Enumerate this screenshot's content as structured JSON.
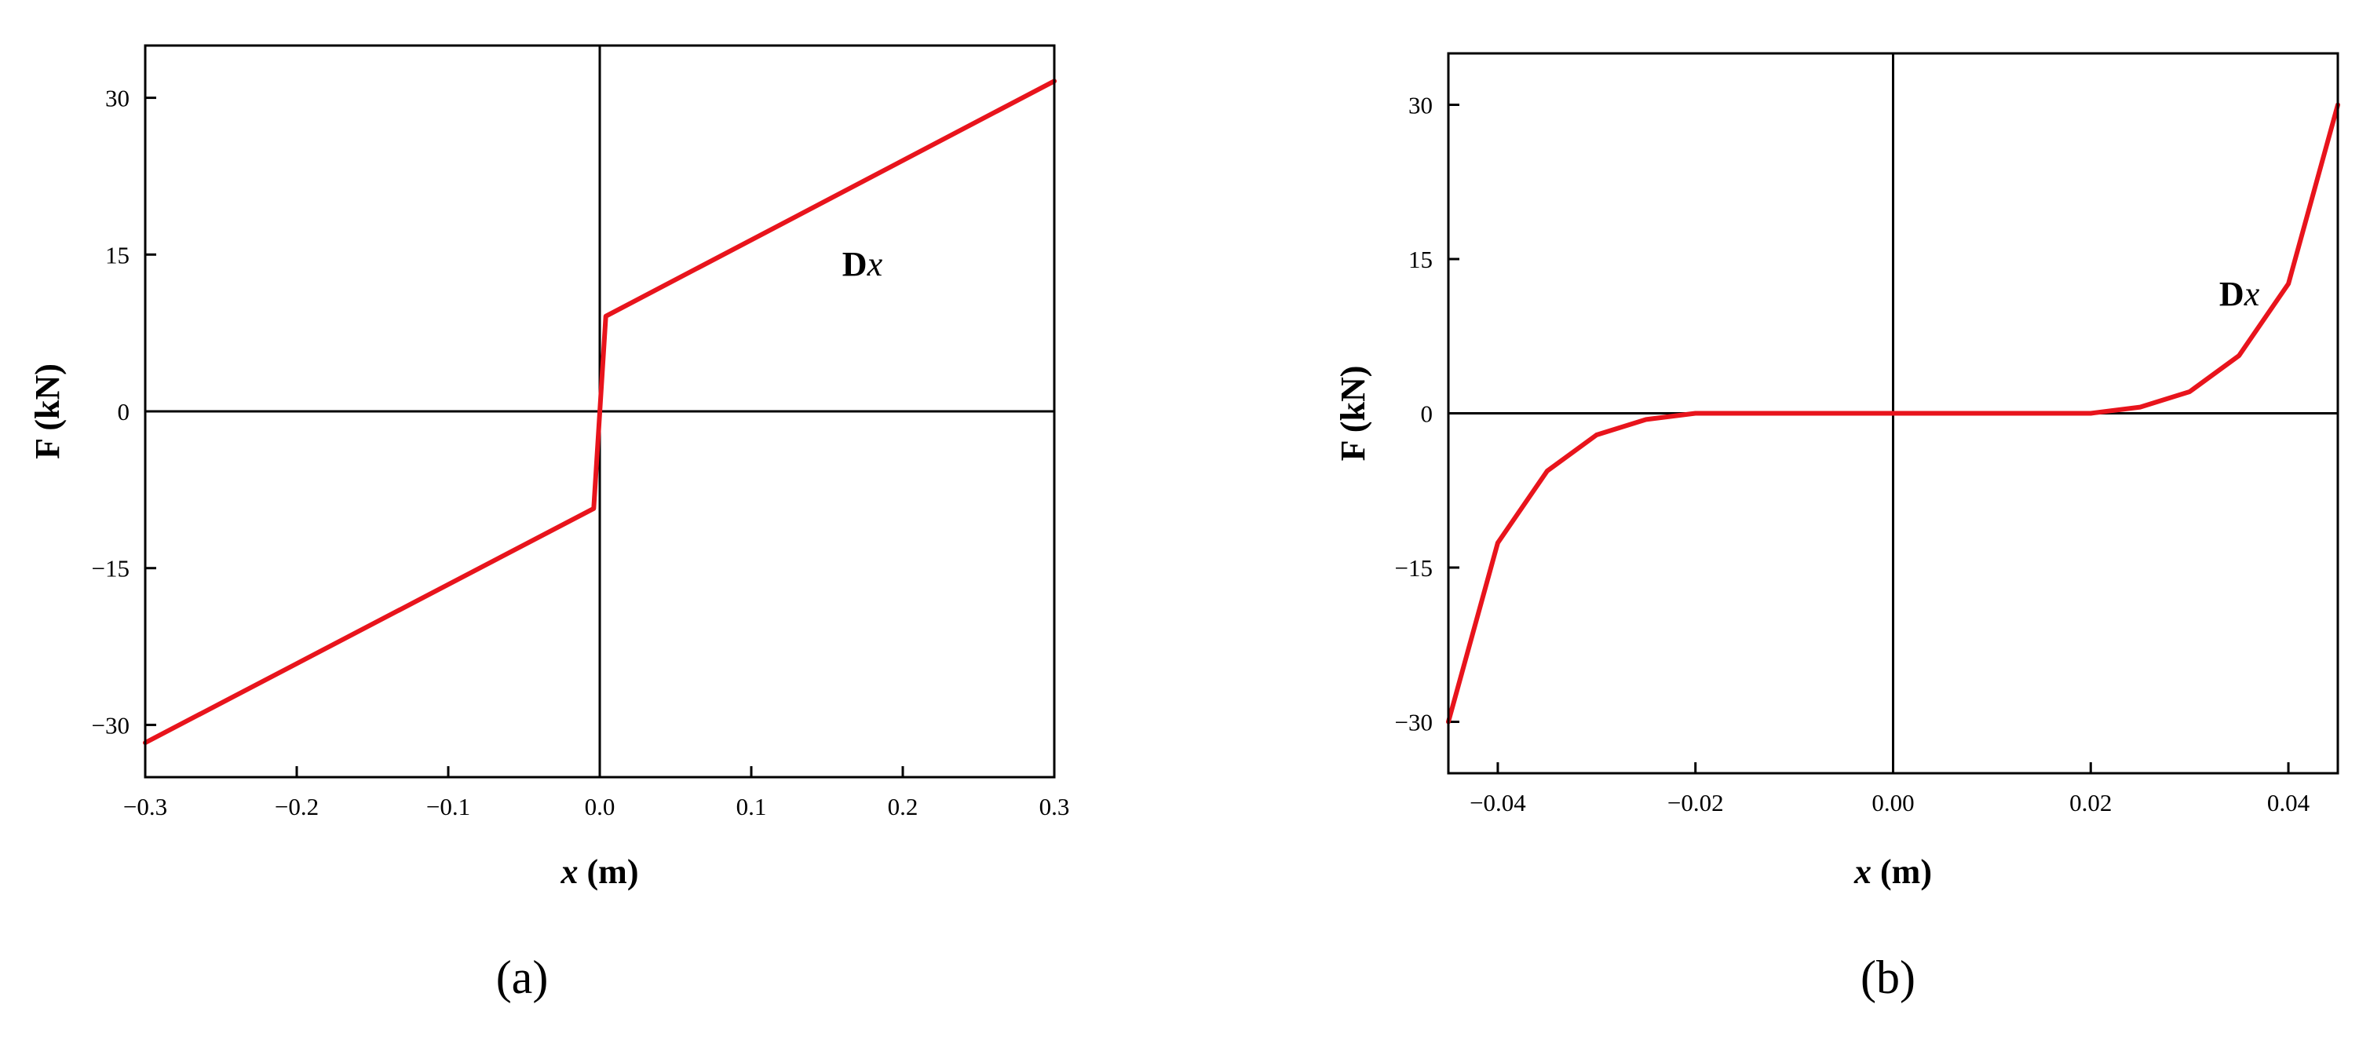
{
  "chart_data": [
    {
      "type": "line",
      "panel_label": "(a)",
      "xlabel_var": "x",
      "xlabel_unit": " (m)",
      "ylabel": "F (kN)",
      "xlim": [
        -0.3,
        0.3
      ],
      "ylim": [
        -35,
        35
      ],
      "xticks": [
        -0.3,
        -0.2,
        -0.1,
        0.0,
        0.1,
        0.2,
        0.3
      ],
      "xtick_labels": [
        "−0.3",
        "−0.2",
        "−0.1",
        "0.0",
        "0.1",
        "0.2",
        "0.3"
      ],
      "yticks": [
        -30,
        -15,
        0,
        15,
        30
      ],
      "ytick_labels": [
        "−30",
        "−15",
        "0",
        "15",
        "30"
      ],
      "grid": false,
      "zero_lines": true,
      "annotation": {
        "bold": "D",
        "italic": "x",
        "at": [
          0.16,
          13
        ]
      },
      "series": [
        {
          "color": "#e8141c",
          "x": [
            -0.3,
            -0.004,
            0.004,
            0.3
          ],
          "y": [
            -31.7,
            -9.3,
            9.1,
            31.6
          ]
        }
      ]
    },
    {
      "type": "line",
      "panel_label": "(b)",
      "xlabel_var": "x",
      "xlabel_unit": " (m)",
      "ylabel": "F (kN)",
      "xlim": [
        -0.045,
        0.045
      ],
      "ylim": [
        -35,
        35
      ],
      "xticks": [
        -0.04,
        -0.02,
        0.0,
        0.02,
        0.04
      ],
      "xtick_labels": [
        "−0.04",
        "−0.02",
        "0.00",
        "0.02",
        "0.04"
      ],
      "yticks": [
        -30,
        -15,
        0,
        15,
        30
      ],
      "ytick_labels": [
        "−30",
        "−15",
        "0",
        "15",
        "30"
      ],
      "grid": false,
      "zero_lines": true,
      "annotation": {
        "bold": "D",
        "italic": "x",
        "at": [
          0.033,
          10.5
        ]
      },
      "series": [
        {
          "color": "#e8141c",
          "x": [
            -0.045,
            -0.04,
            -0.035,
            -0.03,
            -0.025,
            -0.02,
            0.0,
            0.02,
            0.025,
            0.03,
            0.035,
            0.04,
            0.045
          ],
          "y": [
            -30,
            -12.6,
            -5.6,
            -2.1,
            -0.6,
            0,
            0,
            0,
            0.6,
            2.1,
            5.6,
            12.6,
            30
          ]
        }
      ]
    }
  ]
}
